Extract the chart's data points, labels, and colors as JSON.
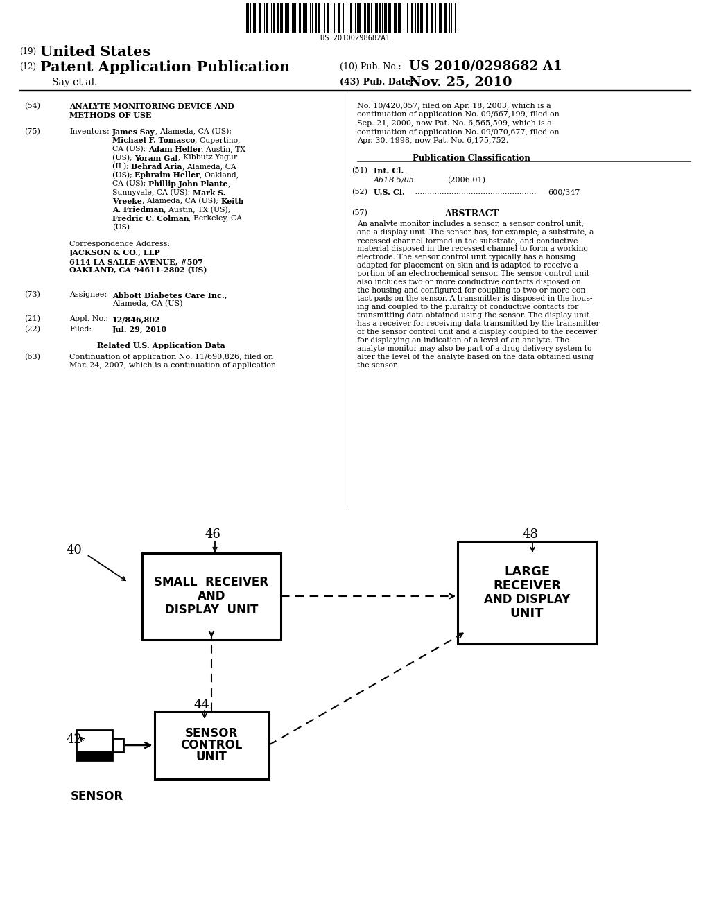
{
  "barcode_text": "US 20100298682A1",
  "bg_color": "#ffffff",
  "text_color": "#000000"
}
